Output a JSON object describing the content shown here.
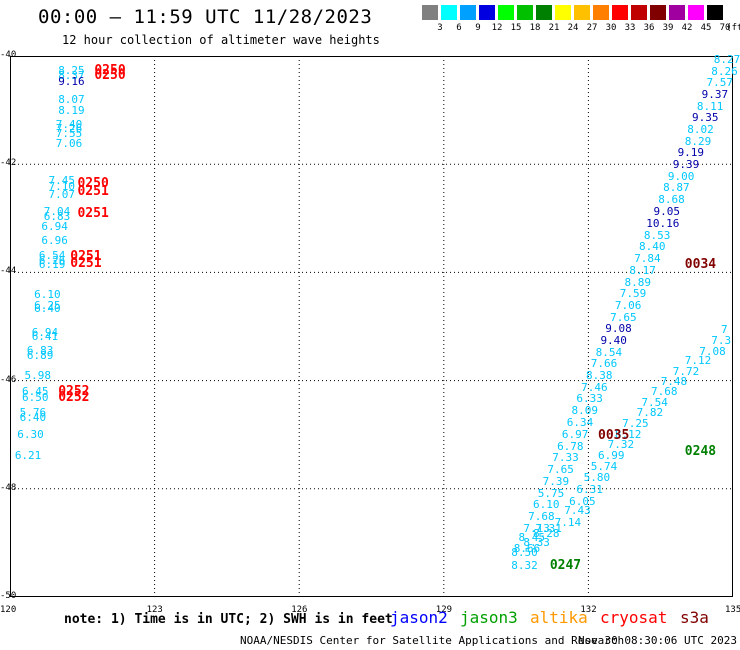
{
  "title": "00:00 – 11:59 UTC 11/28/2023",
  "subtitle": "12 hour collection of altimeter wave heights",
  "scale": {
    "unit": "(ft)",
    "items": [
      {
        "label": "3",
        "color": "#808080"
      },
      {
        "label": "6",
        "color": "#00ffff"
      },
      {
        "label": "9",
        "color": "#00a0ff"
      },
      {
        "label": "12",
        "color": "#0000e0"
      },
      {
        "label": "15",
        "color": "#00ff00"
      },
      {
        "label": "18",
        "color": "#00c000"
      },
      {
        "label": "21",
        "color": "#008000"
      },
      {
        "label": "24",
        "color": "#ffff00"
      },
      {
        "label": "27",
        "color": "#ffc000"
      },
      {
        "label": "30",
        "color": "#ff8000"
      },
      {
        "label": "33",
        "color": "#ff0000"
      },
      {
        "label": "36",
        "color": "#c00000"
      },
      {
        "label": "39",
        "color": "#800000"
      },
      {
        "label": "42",
        "color": "#a000a0"
      },
      {
        "label": "45",
        "color": "#ff00ff"
      },
      {
        "label": "70",
        "color": "#000000"
      }
    ]
  },
  "axes": {
    "lon_ticks": [
      "120",
      "123",
      "126",
      "129",
      "132",
      "135"
    ],
    "lat_ticks": [
      "-40",
      "-42",
      "-44",
      "-46",
      "-48",
      "-50"
    ],
    "lon_range": [
      120,
      135
    ],
    "lat_range": [
      -40,
      -50
    ]
  },
  "note": "note:  1) Time is in UTC;  2) SWH is in feet",
  "satellites": [
    {
      "name": "jason2",
      "color": "#0000ff"
    },
    {
      "name": "jason3",
      "color": "#00a000"
    },
    {
      "name": "altika",
      "color": "#ff9900"
    },
    {
      "name": "cryosat",
      "color": "#ff0000"
    },
    {
      "name": "s3a",
      "color": "#800000"
    }
  ],
  "footer_left": "NOAA/NESDIS Center for Satellite Applications and Research",
  "footer_right": "Nov 30 08:30:06 UTC 2023",
  "colors": {
    "c1": "#00c8ff",
    "c2": "#1ea0e6",
    "c3": "#0000aa",
    "red": "#ff0000",
    "dred": "#800000",
    "green": "#008000"
  },
  "points": [
    {
      "t": "8.25",
      "lon": 121.0,
      "lat": -40.25,
      "c": "c1"
    },
    {
      "t": "8.37",
      "lon": 121.0,
      "lat": -40.35,
      "c": "c1"
    },
    {
      "t": "9.16",
      "lon": 121.0,
      "lat": -40.46,
      "c": "c3"
    },
    {
      "t": "8.07",
      "lon": 121.0,
      "lat": -40.79,
      "c": "c1"
    },
    {
      "t": "8.19",
      "lon": 121.0,
      "lat": -41.0,
      "c": "c1"
    },
    {
      "t": "7.40",
      "lon": 120.95,
      "lat": -41.25,
      "c": "c1"
    },
    {
      "t": "7.26",
      "lon": 120.95,
      "lat": -41.33,
      "c": "c1"
    },
    {
      "t": "7.55",
      "lon": 120.95,
      "lat": -41.43,
      "c": "c1"
    },
    {
      "t": "7.06",
      "lon": 120.95,
      "lat": -41.6,
      "c": "c1"
    },
    {
      "t": "7.45",
      "lon": 120.8,
      "lat": -42.3,
      "c": "c1"
    },
    {
      "t": "7.10",
      "lon": 120.8,
      "lat": -42.4,
      "c": "c1"
    },
    {
      "t": "7.07",
      "lon": 120.8,
      "lat": -42.55,
      "c": "c1"
    },
    {
      "t": "7.04",
      "lon": 120.7,
      "lat": -42.87,
      "c": "c1"
    },
    {
      "t": "6.83",
      "lon": 120.7,
      "lat": -42.95,
      "c": "c1"
    },
    {
      "t": "6.94",
      "lon": 120.65,
      "lat": -43.15,
      "c": "c1"
    },
    {
      "t": "6.96",
      "lon": 120.65,
      "lat": -43.4,
      "c": "c1"
    },
    {
      "t": "6.54",
      "lon": 120.6,
      "lat": -43.67,
      "c": "c1"
    },
    {
      "t": "6.26",
      "lon": 120.6,
      "lat": -43.77,
      "c": "c1"
    },
    {
      "t": "6.19",
      "lon": 120.6,
      "lat": -43.85,
      "c": "c1"
    },
    {
      "t": "6.10",
      "lon": 120.5,
      "lat": -44.4,
      "c": "c1"
    },
    {
      "t": "6.25",
      "lon": 120.5,
      "lat": -44.6,
      "c": "c1"
    },
    {
      "t": "6.40",
      "lon": 120.5,
      "lat": -44.65,
      "c": "c1"
    },
    {
      "t": "6.94",
      "lon": 120.45,
      "lat": -45.1,
      "c": "c1"
    },
    {
      "t": "6.41",
      "lon": 120.45,
      "lat": -45.17,
      "c": "c1"
    },
    {
      "t": "6.83",
      "lon": 120.35,
      "lat": -45.43,
      "c": "c1"
    },
    {
      "t": "6.89",
      "lon": 120.35,
      "lat": -45.53,
      "c": "c1"
    },
    {
      "t": "5.98",
      "lon": 120.3,
      "lat": -45.9,
      "c": "c1"
    },
    {
      "t": "6.45",
      "lon": 120.25,
      "lat": -46.2,
      "c": "c1"
    },
    {
      "t": "6.50",
      "lon": 120.25,
      "lat": -46.3,
      "c": "c1"
    },
    {
      "t": "5.76",
      "lon": 120.2,
      "lat": -46.58,
      "c": "c1"
    },
    {
      "t": "6.40",
      "lon": 120.2,
      "lat": -46.68,
      "c": "c1"
    },
    {
      "t": "6.30",
      "lon": 120.15,
      "lat": -46.98,
      "c": "c1"
    },
    {
      "t": "6.21",
      "lon": 120.1,
      "lat": -47.38,
      "c": "c1"
    },
    {
      "t": "8.27",
      "lon": 134.6,
      "lat": -40.05,
      "c": "c1"
    },
    {
      "t": "8.26",
      "lon": 134.55,
      "lat": -40.27,
      "c": "c1"
    },
    {
      "t": "7.57",
      "lon": 134.45,
      "lat": -40.48,
      "c": "c1"
    },
    {
      "t": "9.37",
      "lon": 134.35,
      "lat": -40.7,
      "c": "c3"
    },
    {
      "t": "8.11",
      "lon": 134.25,
      "lat": -40.92,
      "c": "c1"
    },
    {
      "t": "9.35",
      "lon": 134.15,
      "lat": -41.13,
      "c": "c3"
    },
    {
      "t": "8.02",
      "lon": 134.05,
      "lat": -41.35,
      "c": "c1"
    },
    {
      "t": "8.29",
      "lon": 134.0,
      "lat": -41.57,
      "c": "c1"
    },
    {
      "t": "9.19",
      "lon": 133.85,
      "lat": -41.78,
      "c": "c3"
    },
    {
      "t": "9.39",
      "lon": 133.75,
      "lat": -42.0,
      "c": "c3"
    },
    {
      "t": "9.00",
      "lon": 133.65,
      "lat": -42.22,
      "c": "c1"
    },
    {
      "t": "8.87",
      "lon": 133.55,
      "lat": -42.43,
      "c": "c1"
    },
    {
      "t": "8.68",
      "lon": 133.45,
      "lat": -42.65,
      "c": "c1"
    },
    {
      "t": "9.05",
      "lon": 133.35,
      "lat": -42.87,
      "c": "c3"
    },
    {
      "t": "10.16",
      "lon": 133.2,
      "lat": -43.08,
      "c": "c3"
    },
    {
      "t": "8.53",
      "lon": 133.15,
      "lat": -43.3,
      "c": "c1"
    },
    {
      "t": "8.40",
      "lon": 133.05,
      "lat": -43.52,
      "c": "c1"
    },
    {
      "t": "7.84",
      "lon": 132.95,
      "lat": -43.73,
      "c": "c1"
    },
    {
      "t": "8.17",
      "lon": 132.85,
      "lat": -43.95,
      "c": "c1"
    },
    {
      "t": "8.89",
      "lon": 132.75,
      "lat": -44.17,
      "c": "c1"
    },
    {
      "t": "7.59",
      "lon": 132.65,
      "lat": -44.38,
      "c": "c1"
    },
    {
      "t": "7.06",
      "lon": 132.55,
      "lat": -44.6,
      "c": "c1"
    },
    {
      "t": "7.65",
      "lon": 132.45,
      "lat": -44.82,
      "c": "c1"
    },
    {
      "t": "9.08",
      "lon": 132.35,
      "lat": -45.03,
      "c": "c3"
    },
    {
      "t": "9.40",
      "lon": 132.25,
      "lat": -45.25,
      "c": "c3"
    },
    {
      "t": "8.54",
      "lon": 132.15,
      "lat": -45.47,
      "c": "c1"
    },
    {
      "t": "7.66",
      "lon": 132.05,
      "lat": -45.68,
      "c": "c1"
    },
    {
      "t": "8.38",
      "lon": 131.95,
      "lat": -45.9,
      "c": "c1"
    },
    {
      "t": "7.46",
      "lon": 131.85,
      "lat": -46.12,
      "c": "c1"
    },
    {
      "t": "6.33",
      "lon": 131.75,
      "lat": -46.33,
      "c": "c1"
    },
    {
      "t": "8.09",
      "lon": 131.65,
      "lat": -46.55,
      "c": "c1"
    },
    {
      "t": "6.34",
      "lon": 131.55,
      "lat": -46.77,
      "c": "c1"
    },
    {
      "t": "6.97",
      "lon": 131.45,
      "lat": -46.98,
      "c": "c1"
    },
    {
      "t": "6.78",
      "lon": 131.35,
      "lat": -47.2,
      "c": "c1"
    },
    {
      "t": "7.33",
      "lon": 131.25,
      "lat": -47.42,
      "c": "c1"
    },
    {
      "t": "7.65",
      "lon": 131.15,
      "lat": -47.63,
      "c": "c1"
    },
    {
      "t": "7.39",
      "lon": 131.05,
      "lat": -47.85,
      "c": "c1"
    },
    {
      "t": "5.75",
      "lon": 130.95,
      "lat": -48.07,
      "c": "c1"
    },
    {
      "t": "6.10",
      "lon": 130.85,
      "lat": -48.28,
      "c": "c1"
    },
    {
      "t": "7.68",
      "lon": 130.75,
      "lat": -48.5,
      "c": "c1"
    },
    {
      "t": "7.13",
      "lon": 130.65,
      "lat": -48.72,
      "c": "c1"
    },
    {
      "t": "7.31",
      "lon": 130.9,
      "lat": -48.72,
      "c": "c1"
    },
    {
      "t": "8.28",
      "lon": 130.85,
      "lat": -48.82,
      "c": "c1"
    },
    {
      "t": "8.45",
      "lon": 130.55,
      "lat": -48.9,
      "c": "c1"
    },
    {
      "t": "8.33",
      "lon": 130.65,
      "lat": -48.98,
      "c": "c1"
    },
    {
      "t": "8.66",
      "lon": 130.45,
      "lat": -49.1,
      "c": "c1"
    },
    {
      "t": "8.50",
      "lon": 130.4,
      "lat": -49.17,
      "c": "c1"
    },
    {
      "t": "8.32",
      "lon": 130.4,
      "lat": -49.4,
      "c": "c1"
    },
    {
      "t": "7.14",
      "lon": 131.3,
      "lat": -48.62,
      "c": "c1"
    },
    {
      "t": "7.43",
      "lon": 131.5,
      "lat": -48.4,
      "c": "c1"
    },
    {
      "t": "6.05",
      "lon": 131.6,
      "lat": -48.22,
      "c": "c1"
    },
    {
      "t": "6.31",
      "lon": 131.75,
      "lat": -48.0,
      "c": "c1"
    },
    {
      "t": "5.80",
      "lon": 131.9,
      "lat": -47.78,
      "c": "c1"
    },
    {
      "t": "5.74",
      "lon": 132.05,
      "lat": -47.58,
      "c": "c1"
    },
    {
      "t": "6.99",
      "lon": 132.2,
      "lat": -47.38,
      "c": "c1"
    },
    {
      "t": "7.32",
      "lon": 132.4,
      "lat": -47.18,
      "c": "c1"
    },
    {
      "t": "8.12",
      "lon": 132.55,
      "lat": -46.98,
      "c": "c1"
    },
    {
      "t": "7.25",
      "lon": 132.7,
      "lat": -46.78,
      "c": "c1"
    },
    {
      "t": "7.82",
      "lon": 133.0,
      "lat": -46.58,
      "c": "c1"
    },
    {
      "t": "7.54",
      "lon": 133.1,
      "lat": -46.4,
      "c": "c1"
    },
    {
      "t": "7.68",
      "lon": 133.3,
      "lat": -46.2,
      "c": "c1"
    },
    {
      "t": "7.48",
      "lon": 133.5,
      "lat": -46.0,
      "c": "c1"
    },
    {
      "t": "7.72",
      "lon": 133.75,
      "lat": -45.82,
      "c": "c1"
    },
    {
      "t": "7.12",
      "lon": 134.0,
      "lat": -45.62,
      "c": "c1"
    },
    {
      "t": "7.08",
      "lon": 134.3,
      "lat": -45.45,
      "c": "c1"
    },
    {
      "t": "7.3",
      "lon": 134.55,
      "lat": -45.25,
      "c": "c1"
    },
    {
      "t": "7",
      "lon": 134.75,
      "lat": -45.05,
      "c": "c1"
    }
  ],
  "times": [
    {
      "t": "0250",
      "lon": 121.75,
      "lat": -40.25,
      "c": "red"
    },
    {
      "t": "0250",
      "lon": 121.75,
      "lat": -40.35,
      "c": "red"
    },
    {
      "t": "0250",
      "lon": 121.4,
      "lat": -42.35,
      "c": "red"
    },
    {
      "t": "0251",
      "lon": 121.4,
      "lat": -42.5,
      "c": "red"
    },
    {
      "t": "0251",
      "lon": 121.4,
      "lat": -42.9,
      "c": "red"
    },
    {
      "t": "0251",
      "lon": 121.25,
      "lat": -43.7,
      "c": "red"
    },
    {
      "t": "0251",
      "lon": 121.25,
      "lat": -43.82,
      "c": "red"
    },
    {
      "t": "0252",
      "lon": 121.0,
      "lat": -46.2,
      "c": "red"
    },
    {
      "t": "0252",
      "lon": 121.0,
      "lat": -46.3,
      "c": "red"
    },
    {
      "t": "0034",
      "lon": 134.0,
      "lat": -43.85,
      "c": "dred"
    },
    {
      "t": "0035",
      "lon": 132.2,
      "lat": -47.0,
      "c": "dred"
    },
    {
      "t": "0248",
      "lon": 134.0,
      "lat": -47.3,
      "c": "green"
    },
    {
      "t": "0247",
      "lon": 131.2,
      "lat": -49.4,
      "c": "green"
    }
  ]
}
